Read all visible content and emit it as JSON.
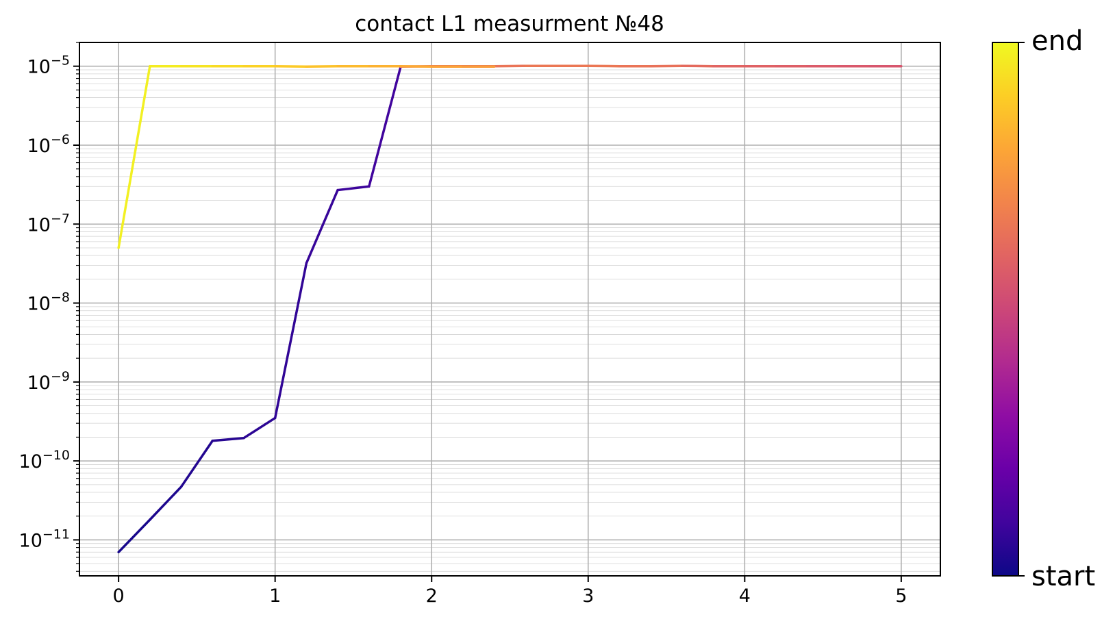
{
  "chart_data": {
    "type": "line",
    "title": "contact L1 measurment №48",
    "xlabel": "",
    "ylabel": "",
    "xlim": [
      -0.25,
      5.25
    ],
    "ylim": [
      3.5e-12,
      2e-05
    ],
    "yscale": "log",
    "grid": "major and minor",
    "x_ticks": [
      {
        "value": 0,
        "label": "0"
      },
      {
        "value": 1,
        "label": "1"
      },
      {
        "value": 2,
        "label": "2"
      },
      {
        "value": 3,
        "label": "3"
      },
      {
        "value": 4,
        "label": "4"
      },
      {
        "value": 5,
        "label": "5"
      }
    ],
    "y_ticks": [
      {
        "exp": -11,
        "base": "10",
        "sup": "−11"
      },
      {
        "exp": -10,
        "base": "10",
        "sup": "−10"
      },
      {
        "exp": -9,
        "base": "10",
        "sup": "−9"
      },
      {
        "exp": -8,
        "base": "10",
        "sup": "−8"
      },
      {
        "exp": -7,
        "base": "10",
        "sup": "−7"
      },
      {
        "exp": -6,
        "base": "10",
        "sup": "−6"
      },
      {
        "exp": -5,
        "base": "10",
        "sup": "−5"
      }
    ],
    "colormap": "plasma",
    "colorbar": {
      "start_label": "start",
      "end_label": "end",
      "colors": [
        "#0d0887",
        "#41049d",
        "#6a00a8",
        "#8f0da4",
        "#b12a90",
        "#cc4778",
        "#e16462",
        "#f2844b",
        "#fca636",
        "#fcce25",
        "#f0f921"
      ]
    },
    "series": [
      {
        "segment": "start",
        "x": [
          0,
          0.2,
          0.4,
          0.6,
          0.8,
          1.0,
          1.2,
          1.4,
          1.6,
          1.8
        ],
        "y": [
          7e-12,
          1.8e-11,
          4.7e-11,
          1.8e-10,
          1.95e-10,
          3.5e-10,
          3.2e-08,
          2.7e-07,
          3e-07,
          9.5e-06
        ],
        "color_pos": [
          0.02,
          0.03,
          0.04,
          0.05,
          0.06,
          0.07,
          0.08,
          0.09,
          0.1,
          0.11
        ]
      },
      {
        "segment": "middle",
        "x": [
          1.8,
          2.0,
          2.2,
          2.4,
          2.6,
          2.8,
          3.0,
          3.2,
          3.4,
          3.6,
          3.8,
          4.0,
          4.2,
          4.4,
          4.6,
          4.8,
          5.0
        ],
        "y": [
          9.9e-06,
          1e-05,
          1e-05,
          1e-05,
          1.01e-05,
          1.01e-05,
          1.01e-05,
          1e-05,
          1e-05,
          1.01e-05,
          1e-05,
          1e-05,
          1e-05,
          1e-05,
          1e-05,
          1e-05,
          1e-05
        ],
        "color_pos": [
          0.62,
          0.63,
          0.64,
          0.65,
          0.66,
          0.66,
          0.66,
          0.65,
          0.64,
          0.62,
          0.6,
          0.59,
          0.58,
          0.57,
          0.56,
          0.55,
          0.54
        ]
      },
      {
        "segment": "end",
        "x": [
          0,
          0.2,
          0.4,
          0.6,
          0.8,
          1.0,
          1.2,
          1.4,
          1.6,
          1.8,
          2.0,
          2.2,
          2.4
        ],
        "y": [
          5e-08,
          1e-05,
          1e-05,
          1e-05,
          1e-05,
          1e-05,
          9.9e-06,
          1e-05,
          1e-05,
          1e-05,
          9.9e-06,
          9.9e-06,
          9.9e-06
        ],
        "color_pos": [
          0.98,
          0.97,
          0.95,
          0.93,
          0.91,
          0.89,
          0.87,
          0.85,
          0.83,
          0.81,
          0.79,
          0.77,
          0.75
        ]
      }
    ]
  }
}
